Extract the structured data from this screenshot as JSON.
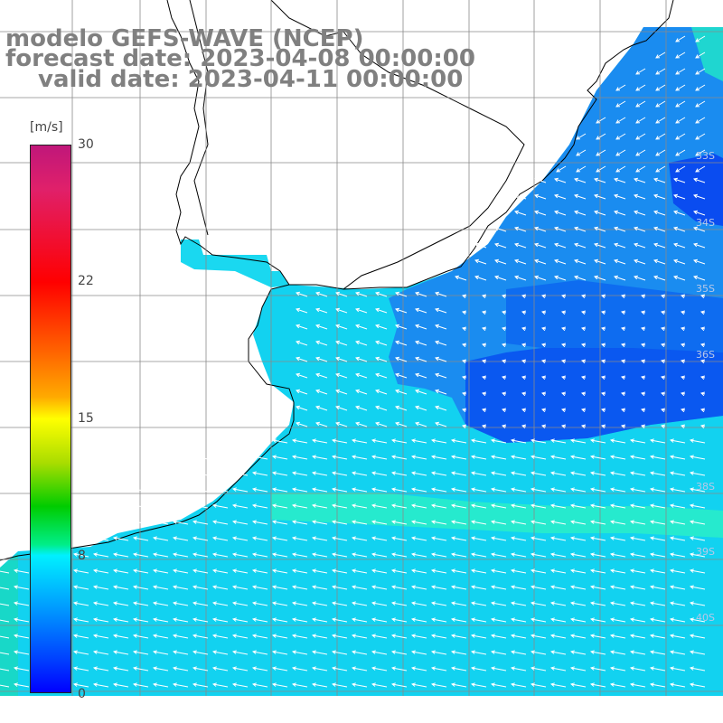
{
  "title": {
    "line1": "modelo GEFS-WAVE (NCEP)",
    "line2": "forecast date: 2023-04-08 00:00:00",
    "line3": "valid date: 2023-04-11 00:00:00"
  },
  "colorbar": {
    "unit": "[m/s]",
    "ticks": [
      "30",
      "22",
      "15",
      "8",
      "0"
    ],
    "tick_values": [
      30,
      22,
      15,
      8,
      0
    ],
    "range": [
      0,
      30
    ],
    "colors": [
      "#0000ff",
      "#0040ff",
      "#00a0ff",
      "#00f0ff",
      "#00ee88",
      "#00cc00",
      "#aadd00",
      "#ffff00",
      "#ffaa00",
      "#ff6600",
      "#ff0000",
      "#e0206a",
      "#c0177a"
    ]
  },
  "lat_labels": [
    "33S",
    "34S",
    "35S",
    "36S",
    "38S",
    "39S",
    "40S"
  ],
  "colors": {
    "land": "#ffffff",
    "coast": "#000000",
    "grid": "#808080",
    "arrows": "#ffffff",
    "title": "#808080"
  }
}
